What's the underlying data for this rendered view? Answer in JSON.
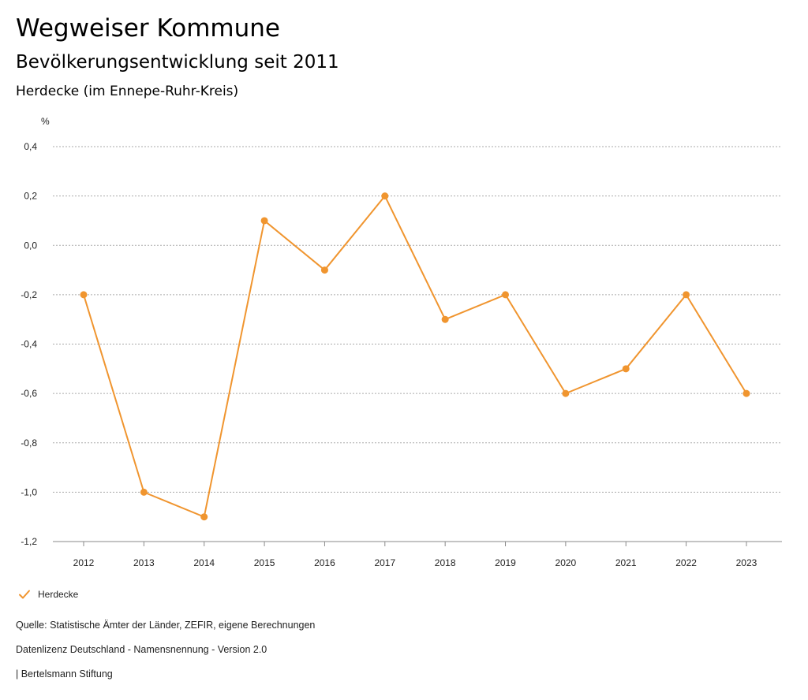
{
  "header": {
    "title": "Wegweiser Kommune",
    "subtitle": "Bevölkerungsentwicklung seit 2011",
    "region": "Herdecke (im Ennepe-Ruhr-Kreis)"
  },
  "chart_data": {
    "type": "line",
    "title": "Bevölkerungsentwicklung seit 2011",
    "subtitle": "Herdecke (im Ennepe-Ruhr-Kreis)",
    "ylabel": "%",
    "xlabel": "",
    "categories": [
      "2012",
      "2013",
      "2014",
      "2015",
      "2016",
      "2017",
      "2018",
      "2019",
      "2020",
      "2021",
      "2022",
      "2023"
    ],
    "series": [
      {
        "name": "Herdecke",
        "color": "#f0952f",
        "values": [
          -0.2,
          -1.0,
          -1.1,
          0.1,
          -0.1,
          0.2,
          -0.3,
          -0.2,
          -0.6,
          -0.5,
          -0.2,
          -0.6
        ]
      }
    ],
    "ylim": [
      -1.2,
      0.4
    ],
    "yticks": [
      0.4,
      0.2,
      0.0,
      -0.2,
      -0.4,
      -0.6,
      -0.8,
      -1.0,
      -1.2
    ],
    "ytick_labels": [
      "0,4",
      "0,2",
      "0,0",
      "-0,2",
      "-0,4",
      "-0,6",
      "-0,8",
      "-1,0",
      "-1,2"
    ],
    "grid": true,
    "legend_position": "bottom-left"
  },
  "legend": {
    "icon": "check-icon",
    "label": "Herdecke"
  },
  "footer": {
    "source": "Quelle: Statistische Ämter der Länder, ZEFIR, eigene Berechnungen",
    "license": "Datenlizenz Deutschland - Namensnennung - Version 2.0",
    "publisher": "| Bertelsmann Stiftung"
  }
}
